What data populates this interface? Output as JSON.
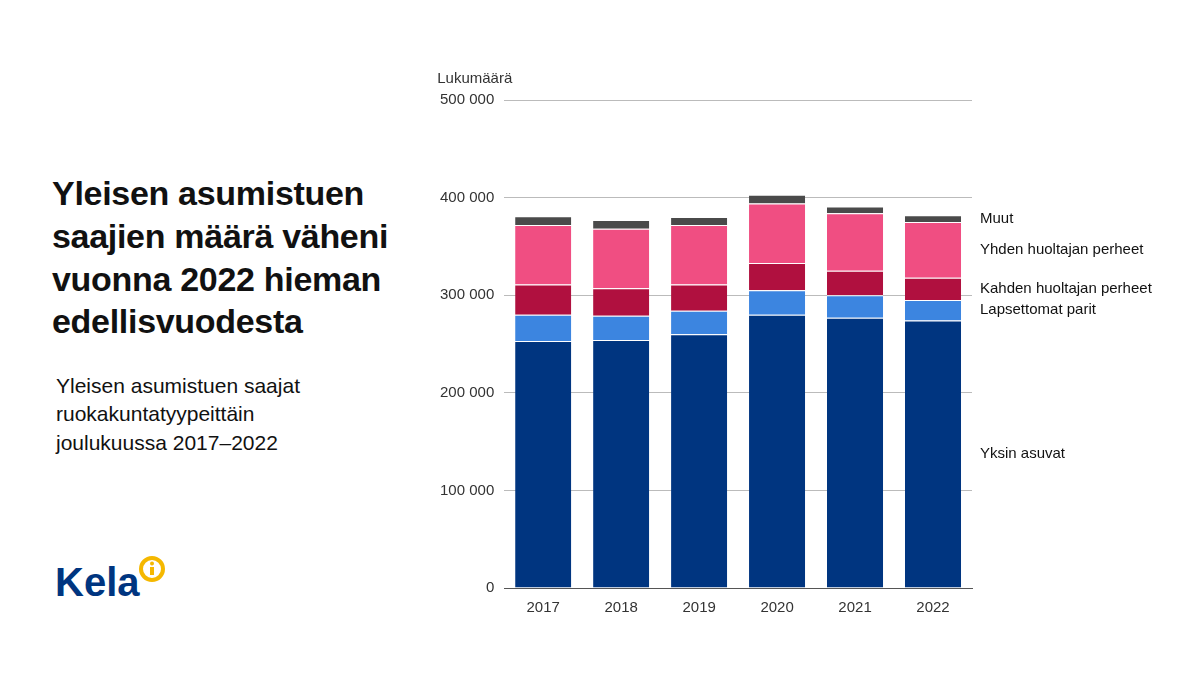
{
  "chart_data": {
    "type": "bar",
    "title": "Yleisen asumistuen saajien määrä väheni vuonna 2022 hieman edellisvuodesta",
    "subtitle": "Yleisen asumistuen saajat ruokakuntatyypeittäin joulukuussa 2017–2022",
    "logo": "Kela",
    "y_label": "Lukumäärä",
    "categories": [
      "2017",
      "2018",
      "2019",
      "2020",
      "2021",
      "2022"
    ],
    "stacked": true,
    "grid": true,
    "series": [
      {
        "name": "Yksin asuvat",
        "color": "#003580",
        "values": [
          253000,
          254000,
          260000,
          280000,
          277000,
          274000
        ]
      },
      {
        "name": "Lapsettomat parit",
        "color": "#3c85e0",
        "values": [
          27000,
          25000,
          24000,
          25000,
          23000,
          21000
        ]
      },
      {
        "name": "Kahden huoltajan perheet",
        "color": "#b0103f",
        "values": [
          31000,
          28000,
          27000,
          28000,
          25000,
          23000
        ]
      },
      {
        "name": "Yhden huoltajan perheet",
        "color": "#f04e82",
        "values": [
          61000,
          61000,
          61000,
          61000,
          59000,
          57000
        ]
      },
      {
        "name": "Muut",
        "color": "#4a4a4a",
        "values": [
          9000,
          9000,
          8000,
          9000,
          7000,
          7000
        ]
      }
    ],
    "ylim": [
      0,
      500000
    ],
    "yticks": [
      0,
      {
        "value": 100000,
        "label": "100 000"
      },
      {
        "value": 200000,
        "label": "200 000"
      },
      {
        "value": 300000,
        "label": "300 000"
      },
      {
        "value": 400000,
        "label": "400 000"
      },
      {
        "value": 500000,
        "label": "500 000"
      }
    ]
  }
}
